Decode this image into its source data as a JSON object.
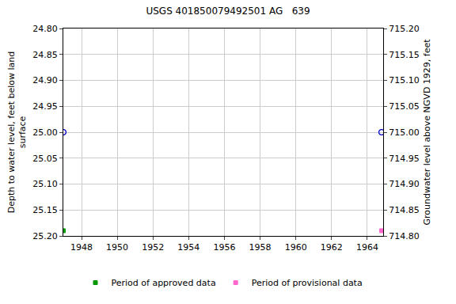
{
  "chart_data": {
    "type": "scatter",
    "title": "USGS 401850079492501 AG   639",
    "x_label": null,
    "y_label": "Depth to water level, feet below land\nsurface",
    "y2_label": "Groundwater level above NGVD 1929, feet",
    "grid": true,
    "legend": "bottom",
    "xlim": [
      1946.98,
      1964.89
    ],
    "xticks": [
      1948,
      1950,
      1952,
      1954,
      1956,
      1958,
      1960,
      1962,
      1964
    ],
    "ylim": [
      25.2,
      24.8
    ],
    "yticks": [
      {
        "value": 24.8,
        "label": "24.80"
      },
      {
        "value": 24.85,
        "label": "24.85"
      },
      {
        "value": 24.9,
        "label": "24.90"
      },
      {
        "value": 24.95,
        "label": "24.95"
      },
      {
        "value": 25.0,
        "label": "25.00"
      },
      {
        "value": 25.05,
        "label": "25.05"
      },
      {
        "value": 25.1,
        "label": "25.10"
      },
      {
        "value": 25.15,
        "label": "25.15"
      },
      {
        "value": 25.2,
        "label": "25.20"
      }
    ],
    "y2lim": [
      714.8,
      715.2
    ],
    "y2ticks": [
      {
        "value": 714.8,
        "label": "714.80"
      },
      {
        "value": 714.85,
        "label": "714.85"
      },
      {
        "value": 714.9,
        "label": "714.90"
      },
      {
        "value": 714.95,
        "label": "714.95"
      },
      {
        "value": 715.0,
        "label": "715.00"
      },
      {
        "value": 715.05,
        "label": "715.05"
      },
      {
        "value": 715.1,
        "label": "715.10"
      },
      {
        "value": 715.15,
        "label": "715.15"
      },
      {
        "value": 715.2,
        "label": "715.20"
      }
    ],
    "series": [
      {
        "x": [
          1946.98,
          1964.8
        ],
        "values": [
          25.0,
          25.0
        ],
        "color": "#0000cc",
        "marker": "circle-open"
      },
      {
        "x": [
          1946.98,
          1964.8
        ],
        "values": [
          715.0,
          715.0
        ],
        "color": "#0000cc",
        "marker": "circle-open",
        "axis": "y2"
      },
      {
        "name": "Period of approved data",
        "x": [
          1946.98
        ],
        "values": [
          25.19
        ],
        "color": "#009900",
        "marker": "square"
      },
      {
        "name": "Period of provisional data",
        "x": [
          1964.8
        ],
        "values": [
          25.19
        ],
        "color": "#ff66cc",
        "marker": "square"
      }
    ]
  }
}
